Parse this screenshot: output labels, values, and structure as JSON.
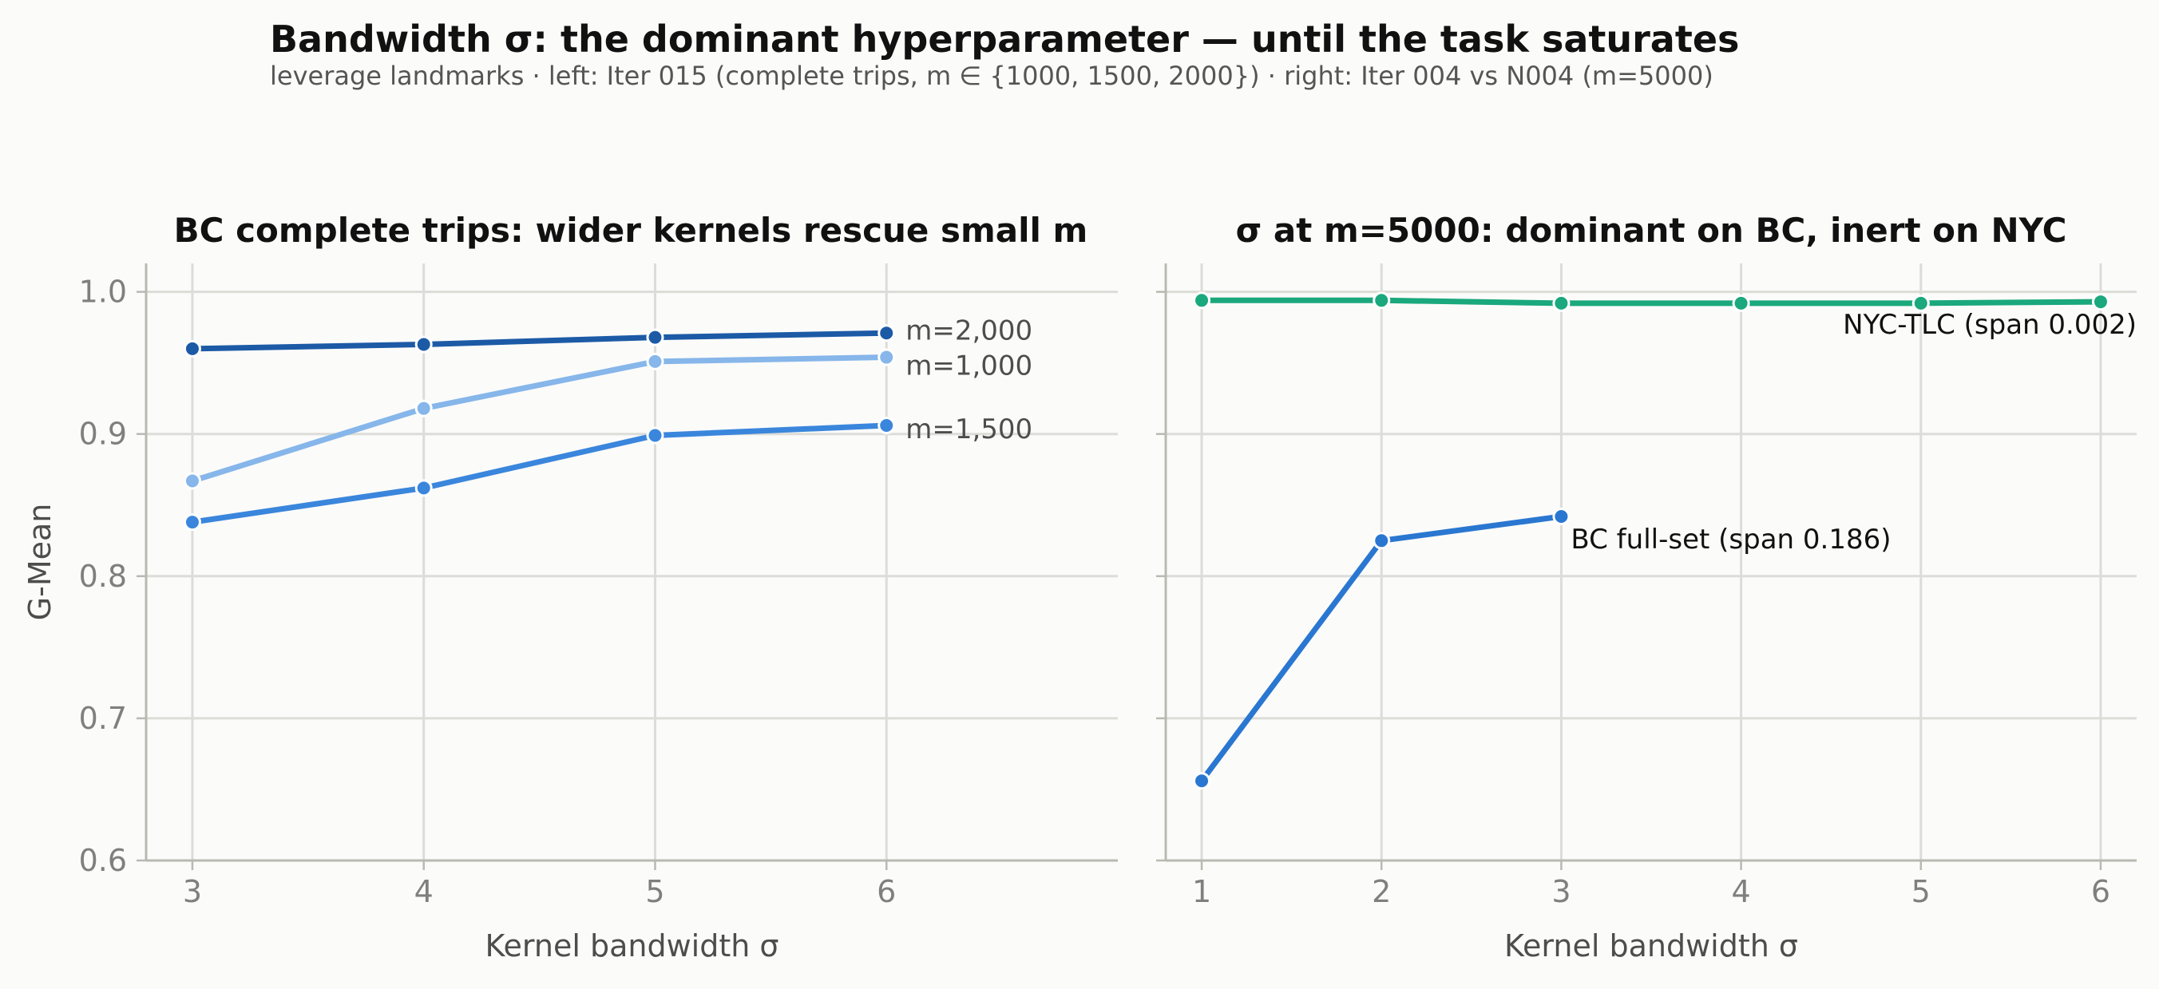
{
  "figure": {
    "title": "Bandwidth σ: the dominant hyperparameter — until the task saturates",
    "subtitle": "leverage landmarks · left: Iter 015 (complete trips, m ∈ {1000, 1500, 2000}) · right: Iter 004 vs N004 (m=5000)"
  },
  "colors": {
    "background": "#fbfbfa",
    "grid": "#dcdcd8",
    "spine": "#b9b9b2",
    "tick_label": "#7f7f7f",
    "axis_label": "#4d4d4d"
  },
  "chart_data": [
    {
      "type": "line",
      "title": "BC complete trips: wider kernels rescue small m",
      "xlabel": "Kernel bandwidth σ",
      "ylabel": "G-Mean",
      "xlim": [
        2.8,
        7.0
      ],
      "ylim": [
        0.6,
        1.02
      ],
      "xticks": [
        "3",
        "4",
        "5",
        "6"
      ],
      "yticks": [
        "0.6",
        "0.7",
        "0.8",
        "0.9",
        "1.0"
      ],
      "grid": true,
      "legend": "inline labels at line ends",
      "series": [
        {
          "name": "m=2,000",
          "color": "#1c5aa6",
          "x": [
            3,
            4,
            5,
            6
          ],
          "values": [
            0.96,
            0.963,
            0.968,
            0.971
          ]
        },
        {
          "name": "m=1,000",
          "color": "#86b6ea",
          "x": [
            3,
            4,
            5,
            6
          ],
          "values": [
            0.867,
            0.918,
            0.951,
            0.954
          ]
        },
        {
          "name": "m=1,500",
          "color": "#3a86dc",
          "x": [
            3,
            4,
            5,
            6
          ],
          "values": [
            0.838,
            0.862,
            0.899,
            0.906
          ]
        }
      ]
    },
    {
      "type": "line",
      "title": "σ at m=5000: dominant on BC, inert on NYC",
      "xlabel": "Kernel bandwidth σ",
      "ylabel": "",
      "xlim": [
        0.8,
        6.2
      ],
      "ylim": [
        0.6,
        1.02
      ],
      "xticks": [
        "1",
        "2",
        "3",
        "4",
        "5",
        "6"
      ],
      "grid": true,
      "legend": "inline annotations",
      "series": [
        {
          "name": "NYC-TLC (span 0.002)",
          "color": "#1aa87c",
          "x": [
            1,
            2,
            3,
            4,
            5,
            6
          ],
          "values": [
            0.994,
            0.994,
            0.992,
            0.992,
            0.992,
            0.993
          ]
        },
        {
          "name": "BC full-set (span 0.186)",
          "color": "#2a77d1",
          "x": [
            1,
            2,
            3
          ],
          "values": [
            0.656,
            0.825,
            0.842
          ]
        }
      ]
    }
  ]
}
